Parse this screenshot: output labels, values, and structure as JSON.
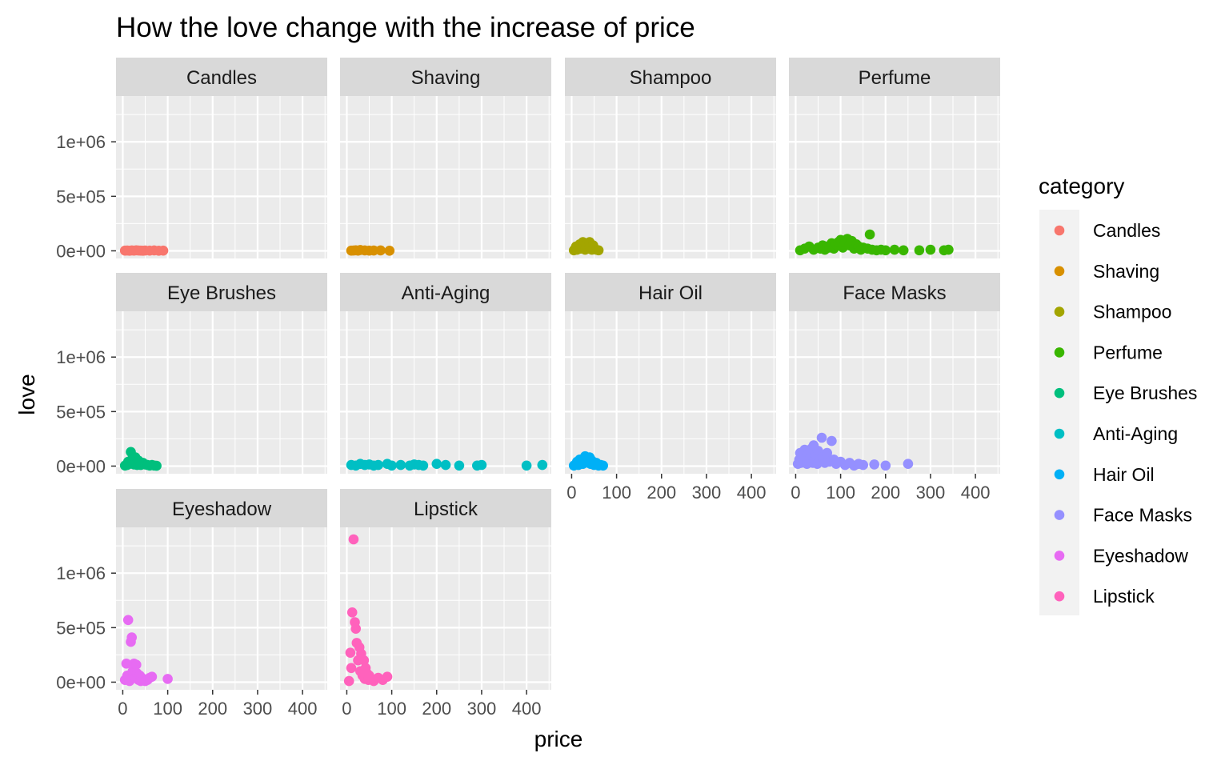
{
  "chart_data": {
    "type": "scatter",
    "title": "How the love change with the increase of price",
    "xlabel": "price",
    "ylabel": "love",
    "xlim": [
      -15,
      455
    ],
    "ylim": [
      -70000,
      1420000
    ],
    "x_ticks": [
      0,
      100,
      200,
      300,
      400
    ],
    "x_tick_labels": [
      "0",
      "100",
      "200",
      "300",
      "400"
    ],
    "y_ticks": [
      0,
      500000,
      1000000
    ],
    "y_tick_labels": [
      "0e+00",
      "5e+05",
      "1e+06"
    ],
    "legend": {
      "title": "category",
      "position": "right"
    },
    "facets": [
      {
        "name": "Candles",
        "color": "#F8766D",
        "x": [
          5,
          10,
          15,
          20,
          25,
          30,
          35,
          40,
          45,
          50,
          60,
          70,
          80,
          90
        ],
        "y": [
          2000,
          3000,
          1000,
          4000,
          2000,
          5000,
          3000,
          2000,
          1000,
          3000,
          2000,
          4000,
          1000,
          2000
        ]
      },
      {
        "name": "Shaving",
        "color": "#D89000",
        "x": [
          10,
          15,
          20,
          25,
          30,
          40,
          50,
          60,
          75,
          95
        ],
        "y": [
          2000,
          3000,
          5000,
          2000,
          8000,
          4000,
          2000,
          3000,
          4000,
          1000
        ]
      },
      {
        "name": "Shampoo",
        "color": "#A3A500",
        "x": [
          5,
          8,
          10,
          12,
          15,
          18,
          20,
          22,
          25,
          28,
          30,
          32,
          35,
          38,
          40,
          42,
          45,
          48,
          50,
          55,
          60
        ],
        "y": [
          5000,
          20000,
          40000,
          10000,
          30000,
          60000,
          20000,
          50000,
          80000,
          30000,
          10000,
          60000,
          40000,
          20000,
          80000,
          30000,
          10000,
          50000,
          20000,
          10000,
          5000
        ]
      },
      {
        "name": "Perfume",
        "color": "#39B600",
        "x": [
          10,
          20,
          30,
          40,
          50,
          55,
          60,
          65,
          70,
          75,
          80,
          85,
          90,
          95,
          100,
          105,
          110,
          115,
          120,
          125,
          130,
          135,
          140,
          145,
          150,
          160,
          165,
          170,
          180,
          190,
          200,
          220,
          240,
          275,
          300,
          330,
          340
        ],
        "y": [
          5000,
          20000,
          40000,
          10000,
          30000,
          20000,
          50000,
          10000,
          40000,
          30000,
          70000,
          20000,
          60000,
          80000,
          100000,
          30000,
          70000,
          110000,
          50000,
          90000,
          20000,
          60000,
          40000,
          10000,
          30000,
          20000,
          150000,
          10000,
          5000,
          10000,
          5000,
          10000,
          5000,
          5000,
          10000,
          5000,
          10000
        ]
      },
      {
        "name": "Eye Brushes",
        "color": "#00BF7D",
        "x": [
          5,
          10,
          12,
          15,
          18,
          20,
          22,
          25,
          28,
          30,
          32,
          35,
          38,
          40,
          45,
          50,
          55,
          60,
          65,
          70,
          75
        ],
        "y": [
          5000,
          10000,
          40000,
          20000,
          130000,
          60000,
          30000,
          15000,
          80000,
          20000,
          10000,
          50000,
          30000,
          10000,
          30000,
          15000,
          10000,
          5000,
          10000,
          5000,
          3000
        ]
      },
      {
        "name": "Anti-Aging",
        "color": "#00BFC4",
        "x": [
          10,
          20,
          30,
          40,
          50,
          60,
          70,
          90,
          100,
          120,
          140,
          150,
          160,
          170,
          200,
          220,
          250,
          290,
          300,
          400,
          435
        ],
        "y": [
          10000,
          5000,
          20000,
          10000,
          15000,
          5000,
          10000,
          20000,
          5000,
          10000,
          5000,
          15000,
          10000,
          5000,
          20000,
          10000,
          5000,
          5000,
          10000,
          5000,
          10000
        ]
      },
      {
        "name": "Hair Oil",
        "color": "#00B0F6",
        "x": [
          5,
          10,
          12,
          15,
          18,
          20,
          22,
          25,
          28,
          30,
          32,
          35,
          38,
          40,
          42,
          45,
          50,
          55,
          60,
          65,
          70
        ],
        "y": [
          5000,
          20000,
          40000,
          10000,
          60000,
          30000,
          50000,
          20000,
          70000,
          90000,
          40000,
          60000,
          30000,
          80000,
          20000,
          50000,
          10000,
          30000,
          5000,
          10000,
          5000
        ]
      },
      {
        "name": "Face Masks",
        "color": "#9590FF",
        "x": [
          5,
          8,
          10,
          12,
          15,
          18,
          20,
          22,
          25,
          28,
          30,
          32,
          35,
          38,
          40,
          42,
          45,
          48,
          50,
          55,
          58,
          60,
          65,
          70,
          75,
          80,
          85,
          90,
          100,
          110,
          120,
          130,
          140,
          150,
          175,
          200,
          250
        ],
        "y": [
          20000,
          60000,
          120000,
          30000,
          90000,
          50000,
          150000,
          70000,
          20000,
          110000,
          40000,
          80000,
          160000,
          30000,
          190000,
          60000,
          100000,
          20000,
          140000,
          50000,
          260000,
          80000,
          30000,
          120000,
          40000,
          230000,
          60000,
          20000,
          40000,
          10000,
          30000,
          5000,
          20000,
          10000,
          15000,
          5000,
          20000
        ]
      },
      {
        "name": "Eyeshadow",
        "color": "#E76BF3",
        "x": [
          5,
          8,
          10,
          12,
          15,
          18,
          20,
          22,
          25,
          28,
          30,
          32,
          35,
          38,
          40,
          42,
          45,
          50,
          55,
          60,
          65,
          100
        ],
        "y": [
          20000,
          170000,
          60000,
          570000,
          10000,
          370000,
          410000,
          100000,
          170000,
          40000,
          160000,
          80000,
          20000,
          60000,
          10000,
          40000,
          20000,
          10000,
          20000,
          40000,
          50000,
          30000
        ]
      },
      {
        "name": "Lipstick",
        "color": "#FF62BC",
        "x": [
          5,
          8,
          10,
          12,
          15,
          18,
          20,
          22,
          25,
          28,
          30,
          32,
          35,
          38,
          40,
          42,
          45,
          48,
          50,
          55,
          60,
          70,
          80,
          90
        ],
        "y": [
          10000,
          270000,
          130000,
          640000,
          1310000,
          550000,
          490000,
          360000,
          200000,
          320000,
          100000,
          260000,
          60000,
          200000,
          30000,
          130000,
          80000,
          20000,
          60000,
          30000,
          10000,
          40000,
          20000,
          50000
        ]
      }
    ]
  }
}
